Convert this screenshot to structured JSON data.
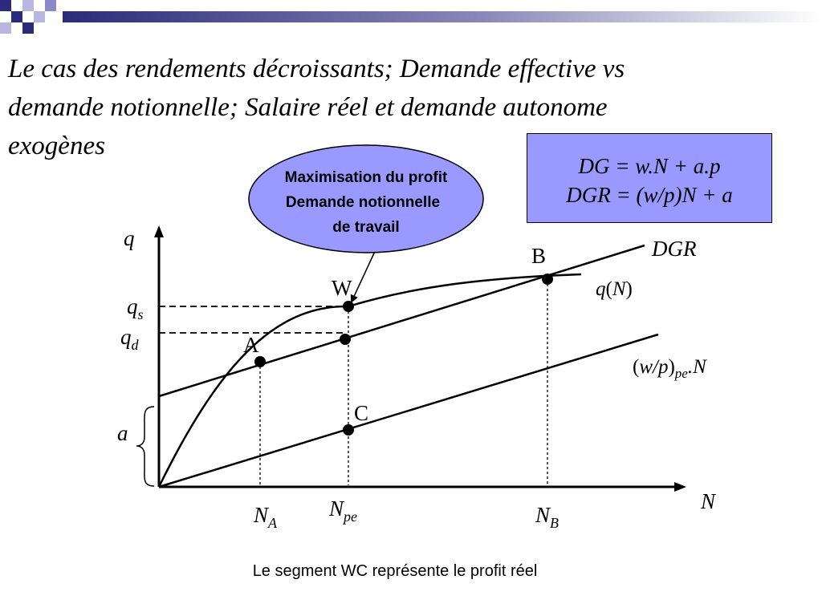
{
  "slide": {
    "title_lines": [
      "Le cas des rendements décroissants; Demande effective vs",
      "demande notionnelle; Salaire réel et demande autonome",
      "exogènes"
    ],
    "equations": [
      "DG = w.N + a.p",
      "DGR = (w/p)N + a"
    ],
    "callout": [
      "Maximisation du profit",
      "Demande notionnelle",
      "de travail"
    ],
    "caption": "Le segment WC représente le profit réel"
  },
  "diagram": {
    "axes": {
      "y": "q",
      "x": "N"
    },
    "points": {
      "A": "A",
      "B": "B",
      "W": "W",
      "C": "C"
    },
    "curves": {
      "dgr": "DGR",
      "production": {
        "base": "q",
        "arg": "N"
      },
      "wage": {
        "base": "w/p",
        "sub": "pe",
        "suffix": ".N"
      }
    },
    "y_ticks": {
      "qs": {
        "base": "q",
        "sub": "s"
      },
      "qd": {
        "base": "q",
        "sub": "d"
      },
      "a": "a"
    },
    "x_ticks": {
      "na": {
        "base": "N",
        "sub": "A"
      },
      "npe": {
        "base": "N",
        "sub": "pe"
      },
      "nb": {
        "base": "N",
        "sub": "B"
      }
    }
  },
  "colors": {
    "equation_box": "#9999ff",
    "callout_fill": "#9999ff",
    "header_accent": "#2b2b7a"
  }
}
